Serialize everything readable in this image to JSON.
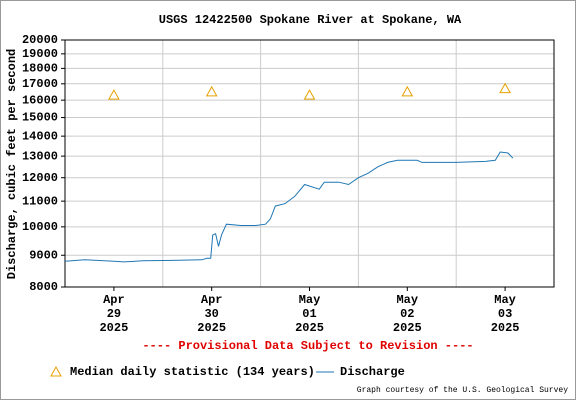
{
  "chart_data": {
    "type": "line",
    "title": "USGS 12422500 Spokane River at Spokane, WA",
    "y_label": "Discharge, cubic feet per second",
    "annotation": "---- Provisional Data Subject to Revision ----",
    "credit": "Graph courtesy of the U.S. Geological Survey",
    "log_scale_y": true,
    "grid": true,
    "xlim": [
      -0.5,
      4.5
    ],
    "xticks": [
      {
        "value": 0,
        "label": [
          "Apr",
          "29",
          "2025"
        ]
      },
      {
        "value": 1,
        "label": [
          "Apr",
          "30",
          "2025"
        ]
      },
      {
        "value": 2,
        "label": [
          "May",
          "01",
          "2025"
        ]
      },
      {
        "value": 3,
        "label": [
          "May",
          "02",
          "2025"
        ]
      },
      {
        "value": 4,
        "label": [
          "May",
          "03",
          "2025"
        ]
      }
    ],
    "xgrid": [
      0.5,
      1.5,
      2.5,
      3.5
    ],
    "ylim": [
      8000,
      20000
    ],
    "yticks": [
      8000,
      9000,
      10000,
      11000,
      12000,
      13000,
      14000,
      15000,
      16000,
      17000,
      18000,
      19000,
      20000
    ],
    "series": [
      {
        "name": "Median daily statistic (134 years)",
        "color": "#e8a000",
        "marker": "triangle",
        "x": [
          0,
          1,
          2,
          3,
          4
        ],
        "values": [
          16300,
          16500,
          16300,
          16500,
          16700
        ]
      },
      {
        "name": "Discharge",
        "color": "#1f77b4",
        "marker": "line",
        "x": [
          -0.5,
          -0.3,
          0,
          0.1,
          0.3,
          0.6,
          0.9,
          0.95,
          0.99,
          1.01,
          1.04,
          1.07,
          1.1,
          1.15,
          1.3,
          1.45,
          1.55,
          1.6,
          1.65,
          1.75,
          1.85,
          1.95,
          2.1,
          2.15,
          2.3,
          2.4,
          2.5,
          2.6,
          2.7,
          2.8,
          2.9,
          3.1,
          3.15,
          3.5,
          3.8,
          3.9,
          3.95,
          4.03,
          4.08
        ],
        "values": [
          8800,
          8850,
          8800,
          8780,
          8820,
          8830,
          8850,
          8900,
          8900,
          9700,
          9750,
          9300,
          9700,
          10100,
          10050,
          10050,
          10100,
          10300,
          10800,
          10900,
          11200,
          11700,
          11500,
          11800,
          11800,
          11700,
          12000,
          12200,
          12500,
          12700,
          12800,
          12800,
          12700,
          12700,
          12750,
          12800,
          13200,
          13150,
          12900
        ]
      }
    ]
  }
}
